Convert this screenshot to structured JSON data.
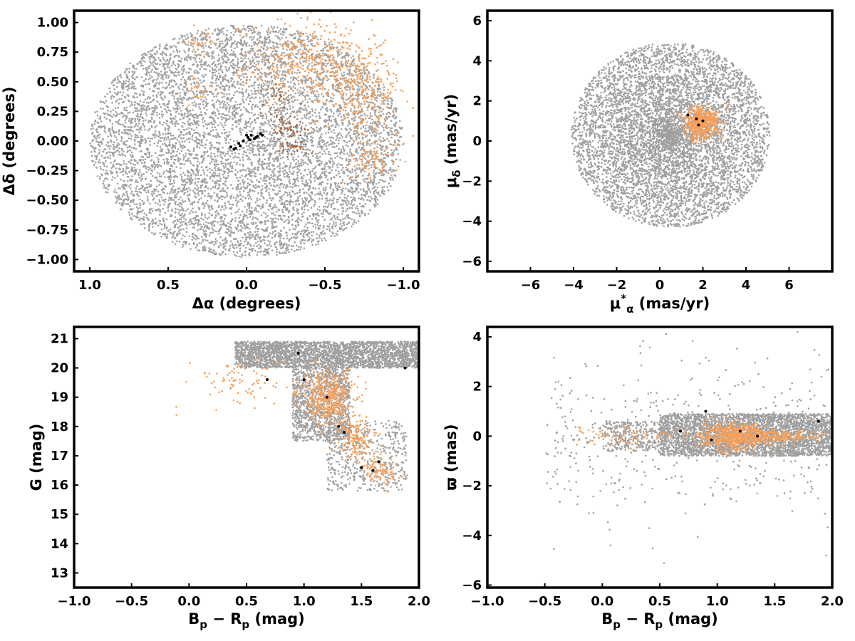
{
  "colors": {
    "field": "#a0a0a0",
    "member": "#f5a05a",
    "member_dark": "#a0643c",
    "core": "#000000",
    "frame": "#000000"
  },
  "chart_data": [
    {
      "id": "sky",
      "type": "scatter",
      "xlabel_main": "Δα (degrees)",
      "ylabel_main": "Δδ (degrees)",
      "xlim": [
        1.1,
        -1.1
      ],
      "ylim": [
        -1.1,
        1.1
      ],
      "x_ticks": [
        1.0,
        0.5,
        0.0,
        -0.5,
        -1.0
      ],
      "x_tick_labels": [
        "1.0",
        "0.5",
        "0.0",
        "−0.5",
        "−1.0"
      ],
      "y_ticks": [
        1.0,
        0.75,
        0.5,
        0.25,
        0.0,
        -0.25,
        -0.5,
        -0.75,
        -1.0
      ],
      "y_tick_labels": [
        "1.00",
        "0.75",
        "0.50",
        "0.25",
        "0.00",
        "−0.25",
        "−0.50",
        "−0.75",
        "−1.00"
      ],
      "series": [
        {
          "role": "field",
          "shape": "ellipse",
          "rx": 1.0,
          "ry": 0.98,
          "n": 7000
        },
        {
          "role": "member",
          "clusters": [
            [
              -0.4,
              0.65,
              0.22,
              0.18,
              450
            ],
            [
              -0.75,
              0.4,
              0.12,
              0.18,
              250
            ],
            [
              -0.8,
              -0.15,
              0.08,
              0.08,
              90
            ],
            [
              0.3,
              0.85,
              0.05,
              0.05,
              25
            ],
            [
              0.32,
              0.45,
              0.03,
              0.05,
              25
            ]
          ]
        },
        {
          "role": "member_dark",
          "clusters": [
            [
              -0.25,
              0.12,
              0.06,
              0.06,
              50
            ],
            [
              -0.3,
              -0.05,
              0.06,
              0.03,
              30
            ],
            [
              -0.2,
              0.35,
              0.05,
              0.05,
              20
            ]
          ]
        },
        {
          "role": "core",
          "points": [
            [
              0.1,
              -0.05
            ],
            [
              0.08,
              -0.07
            ],
            [
              0.05,
              -0.02
            ],
            [
              0.02,
              0.0
            ],
            [
              -0.01,
              0.03
            ],
            [
              -0.03,
              0.05
            ],
            [
              -0.05,
              0.02
            ],
            [
              -0.07,
              0.04
            ],
            [
              -0.09,
              0.06
            ],
            [
              0.04,
              -0.04
            ],
            [
              -0.02,
              0.01
            ],
            [
              0.07,
              -0.06
            ],
            [
              -0.06,
              0.03
            ],
            [
              -0.1,
              0.05
            ],
            [
              0.0,
              0.05
            ]
          ]
        }
      ]
    },
    {
      "id": "pm",
      "type": "scatter",
      "xlabel_main": "μ",
      "xlabel_sub": "α",
      "xlabel_sup": "*",
      "xlabel_tail": " (mas/yr)",
      "ylabel_main": "μ",
      "ylabel_sub": "δ",
      "ylabel_tail": " (mas/yr)",
      "xlim": [
        -8.0,
        8.0
      ],
      "ylim": [
        -6.5,
        6.5
      ],
      "x_ticks": [
        -6,
        -4,
        -2,
        0,
        2,
        4,
        6
      ],
      "x_tick_labels": [
        "−6",
        "−4",
        "−2",
        "0",
        "2",
        "4",
        "6"
      ],
      "y_ticks": [
        6,
        4,
        2,
        0,
        -2,
        -4,
        -6
      ],
      "y_tick_labels": [
        "6",
        "4",
        "2",
        "0",
        "−2",
        "−4",
        "−6"
      ],
      "series": [
        {
          "role": "field",
          "shape": "disk",
          "cx": 0.5,
          "cy": 0.3,
          "r": 4.6,
          "n": 6500
        },
        {
          "role": "member",
          "clusters": [
            [
              1.9,
              0.9,
              0.4,
              0.4,
              500
            ]
          ]
        },
        {
          "role": "core",
          "points": [
            [
              1.3,
              1.3
            ],
            [
              1.8,
              0.8
            ],
            [
              2.0,
              1.0
            ],
            [
              1.7,
              1.1
            ]
          ]
        }
      ]
    },
    {
      "id": "cmd",
      "type": "scatter",
      "xlabel_main": "B",
      "xlabel_sub": "p",
      "xlabel_mid": " − R",
      "xlabel_sub2": "p",
      "xlabel_tail": " (mag)",
      "ylabel_main": "G (mag)",
      "xlim": [
        -1.0,
        2.0
      ],
      "ylim": [
        12.5,
        21.4
      ],
      "y_inverted": true,
      "x_ticks": [
        -1.0,
        -0.5,
        0.0,
        0.5,
        1.0,
        1.5,
        2.0
      ],
      "x_tick_labels": [
        "−1.0",
        "−0.5",
        "0.0",
        "0.5",
        "1.0",
        "1.5",
        "2.0"
      ],
      "y_ticks": [
        21,
        20,
        19,
        18,
        17,
        16,
        15,
        14,
        13
      ],
      "y_tick_labels": [
        "21",
        "20",
        "19",
        "18",
        "17",
        "16",
        "15",
        "14",
        "13"
      ],
      "series": [
        {
          "role": "field",
          "bands": [
            [
              0.4,
              2.0,
              20.0,
              20.9,
              2800
            ],
            [
              0.9,
              1.4,
              17.5,
              20.0,
              1200
            ],
            [
              1.2,
              1.9,
              15.8,
              18.2,
              500
            ]
          ]
        },
        {
          "role": "member",
          "clusters": [
            [
              1.2,
              19.0,
              0.12,
              0.45,
              450
            ],
            [
              1.45,
              17.6,
              0.07,
              0.35,
              150
            ],
            [
              1.65,
              16.5,
              0.08,
              0.3,
              100
            ],
            [
              0.4,
              19.5,
              0.2,
              0.4,
              80
            ]
          ]
        },
        {
          "role": "core",
          "points": [
            [
              0.95,
              20.5
            ],
            [
              1.0,
              19.6
            ],
            [
              0.68,
              19.6
            ],
            [
              1.3,
              18.0
            ],
            [
              1.35,
              17.8
            ],
            [
              1.5,
              16.6
            ],
            [
              1.6,
              16.5
            ],
            [
              1.65,
              16.8
            ],
            [
              1.88,
              20.0
            ],
            [
              1.2,
              19.0
            ]
          ]
        }
      ]
    },
    {
      "id": "parallax",
      "type": "scatter",
      "xlabel_main": "B",
      "xlabel_sub": "p",
      "xlabel_mid": " − R",
      "xlabel_sub2": "p",
      "xlabel_tail": " (mag)",
      "ylabel_main": "ϖ (mas)",
      "xlim": [
        -1.0,
        2.0
      ],
      "ylim": [
        -6.1,
        4.4
      ],
      "x_ticks": [
        -1.0,
        -0.5,
        0.0,
        0.5,
        1.0,
        1.5,
        2.0
      ],
      "x_tick_labels": [
        "−1.0",
        "−0.5",
        "0.0",
        "0.5",
        "1.0",
        "1.5",
        "2.0"
      ],
      "y_ticks": [
        4,
        2,
        0,
        -2,
        -4,
        -6
      ],
      "y_tick_labels": [
        "4",
        "2",
        "0",
        "−2",
        "−4",
        "−6"
      ],
      "series": [
        {
          "role": "field",
          "bands": [
            [
              0.5,
              2.0,
              -0.8,
              0.9,
              3500
            ],
            [
              0.0,
              0.5,
              -0.6,
              0.6,
              300
            ]
          ],
          "outliers": 500
        },
        {
          "role": "member",
          "clusters": [
            [
              1.15,
              0.0,
              0.15,
              0.25,
              600
            ],
            [
              1.5,
              0.0,
              0.2,
              0.12,
              200
            ],
            [
              0.2,
              0.0,
              0.2,
              0.2,
              80
            ]
          ]
        },
        {
          "role": "core",
          "points": [
            [
              0.68,
              0.2
            ],
            [
              0.9,
              1.0
            ],
            [
              0.95,
              -0.15
            ],
            [
              1.2,
              0.2
            ],
            [
              1.88,
              0.6
            ],
            [
              1.35,
              0.0
            ]
          ]
        }
      ]
    }
  ]
}
